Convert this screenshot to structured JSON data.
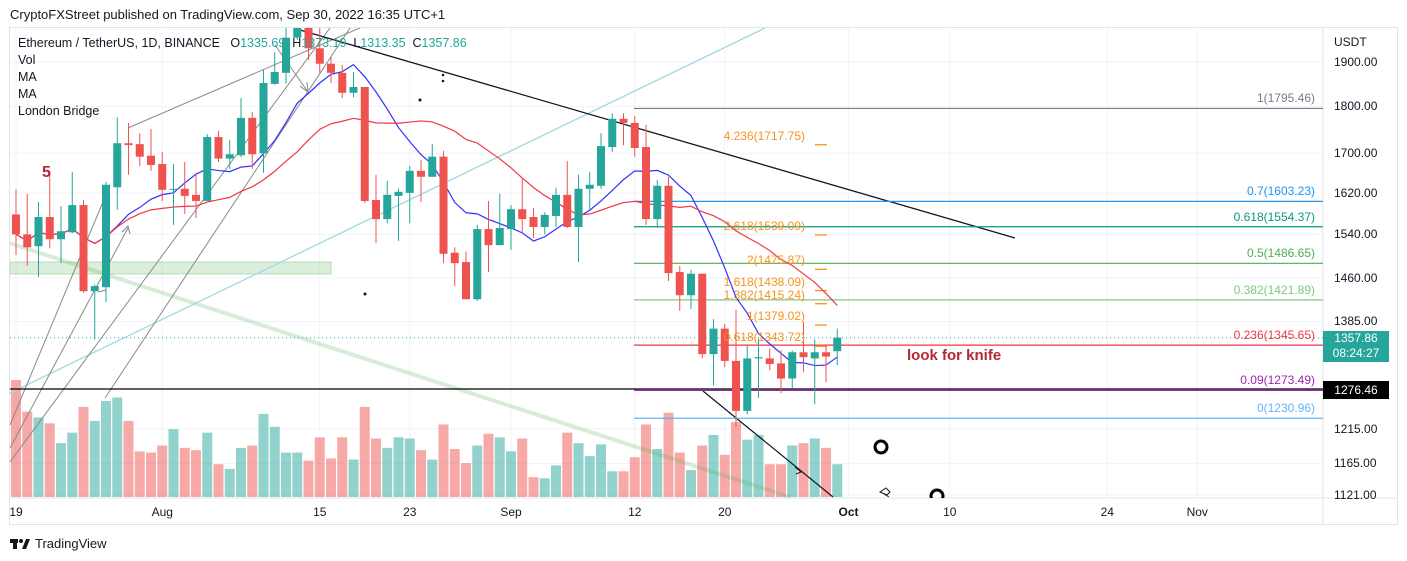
{
  "published": "CryptoFXStreet published on TradingView.com, Sep 30, 2022 16:35 UTC+1",
  "legend": {
    "symbol": "Ethereum / TetherUS, 1D, BINANCE",
    "o_label": "O",
    "o": "1335.69",
    "h_label": "H",
    "h": "1373.19",
    "l_label": "L",
    "l": "1313.35",
    "c_label": "C",
    "c": "1357.86",
    "indicators": [
      "Vol",
      "MA",
      "MA",
      "London Bridge"
    ]
  },
  "colors": {
    "up": "#26a69a",
    "down": "#ef5350",
    "ma_fast": "#3030ff",
    "ma_slow": "#f23645",
    "extension": "#f7931a",
    "note": "#b22833"
  },
  "current_price": {
    "price": "1357.86",
    "countdown": "08:24:27"
  },
  "horizontal_line": {
    "price": "1276.46"
  },
  "notes": {
    "wave_label": "5",
    "text": "look for knife"
  },
  "footer": {
    "brand": "TradingView"
  },
  "chart_data": {
    "type": "candlestick",
    "currency": "USDT",
    "y_scale": "log",
    "ylim": [
      1121,
      1990
    ],
    "grid": true,
    "y_ticks": [
      "1900.00",
      "1800.00",
      "1700.00",
      "1620.00",
      "1540.00",
      "1460.00",
      "1385.00",
      "1215.00",
      "1165.00",
      "1121.00"
    ],
    "x_ticks": [
      {
        "label": "19",
        "date": "2022-07-19"
      },
      {
        "label": "Aug",
        "date": "2022-08-01"
      },
      {
        "label": "15",
        "date": "2022-08-15"
      },
      {
        "label": "23",
        "date": "2022-08-23"
      },
      {
        "label": "Sep",
        "date": "2022-09-01"
      },
      {
        "label": "12",
        "date": "2022-09-12"
      },
      {
        "label": "20",
        "date": "2022-09-20"
      },
      {
        "label": "Oct",
        "date": "2022-10-01",
        "bold": true
      },
      {
        "label": "10",
        "date": "2022-10-10"
      },
      {
        "label": "24",
        "date": "2022-10-24"
      },
      {
        "label": "Nov",
        "date": "2022-11-01"
      }
    ],
    "dates": [
      "2022-07-19",
      "2022-07-20",
      "2022-07-21",
      "2022-07-22",
      "2022-07-23",
      "2022-07-24",
      "2022-07-25",
      "2022-07-26",
      "2022-07-27",
      "2022-07-28",
      "2022-07-29",
      "2022-07-30",
      "2022-07-31",
      "2022-08-01",
      "2022-08-02",
      "2022-08-03",
      "2022-08-04",
      "2022-08-05",
      "2022-08-06",
      "2022-08-07",
      "2022-08-08",
      "2022-08-09",
      "2022-08-10",
      "2022-08-11",
      "2022-08-12",
      "2022-08-13",
      "2022-08-14",
      "2022-08-15",
      "2022-08-16",
      "2022-08-17",
      "2022-08-18",
      "2022-08-19",
      "2022-08-20",
      "2022-08-21",
      "2022-08-22",
      "2022-08-23",
      "2022-08-24",
      "2022-08-25",
      "2022-08-26",
      "2022-08-27",
      "2022-08-28",
      "2022-08-29",
      "2022-08-30",
      "2022-08-31",
      "2022-09-01",
      "2022-09-02",
      "2022-09-03",
      "2022-09-04",
      "2022-09-05",
      "2022-09-06",
      "2022-09-07",
      "2022-09-08",
      "2022-09-09",
      "2022-09-10",
      "2022-09-11",
      "2022-09-12",
      "2022-09-13",
      "2022-09-14",
      "2022-09-15",
      "2022-09-16",
      "2022-09-17",
      "2022-09-18",
      "2022-09-19",
      "2022-09-20",
      "2022-09-21",
      "2022-09-22",
      "2022-09-23",
      "2022-09-24",
      "2022-09-25",
      "2022-09-26",
      "2022-09-27",
      "2022-09-28",
      "2022-09-29",
      "2022-09-30"
    ],
    "open": [
      1578,
      1540,
      1518,
      1573,
      1531,
      1544,
      1596,
      1437,
      1444,
      1631,
      1721,
      1719,
      1695,
      1678,
      1626,
      1628,
      1616,
      1604,
      1734,
      1689,
      1696,
      1775,
      1700,
      1850,
      1875,
      1957,
      1983,
      1932,
      1896,
      1875,
      1830,
      1843,
      1606,
      1569,
      1614,
      1620,
      1664,
      1652,
      1693,
      1506,
      1489,
      1423,
      1550,
      1520,
      1550,
      1588,
      1573,
      1554,
      1575,
      1616,
      1554,
      1628,
      1634,
      1713,
      1773,
      1764,
      1713,
      1569,
      1634,
      1471,
      1430,
      1468,
      1331,
      1373,
      1320,
      1242,
      1324,
      1324,
      1316,
      1292,
      1334,
      1324,
      1334,
      1335.69
    ],
    "high": [
      1627,
      1618,
      1602,
      1658,
      1594,
      1662,
      1606,
      1449,
      1642,
      1776,
      1764,
      1742,
      1751,
      1703,
      1678,
      1682,
      1660,
      1740,
      1747,
      1728,
      1818,
      1788,
      1882,
      1923,
      1983,
      2000,
      2000,
      2000,
      1912,
      1893,
      1877,
      1843,
      1656,
      1644,
      1628,
      1674,
      1686,
      1719,
      1705,
      1516,
      1508,
      1558,
      1604,
      1618,
      1596,
      1648,
      1590,
      1582,
      1630,
      1684,
      1656,
      1662,
      1742,
      1785,
      1785,
      1779,
      1760,
      1646,
      1652,
      1482,
      1475,
      1468,
      1389,
      1381,
      1405,
      1345,
      1356,
      1340,
      1337,
      1337,
      1384,
      1355,
      1345,
      1373.19
    ],
    "low": [
      1502,
      1482,
      1462,
      1514,
      1487,
      1542,
      1434,
      1355,
      1418,
      1587,
      1656,
      1674,
      1664,
      1604,
      1558,
      1579,
      1571,
      1604,
      1682,
      1668,
      1692,
      1668,
      1660,
      1848,
      1850,
      1952,
      1905,
      1875,
      1852,
      1818,
      1820,
      1600,
      1524,
      1561,
      1528,
      1561,
      1602,
      1652,
      1487,
      1446,
      1423,
      1420,
      1471,
      1520,
      1511,
      1544,
      1533,
      1540,
      1554,
      1552,
      1489,
      1587,
      1628,
      1703,
      1717,
      1693,
      1558,
      1552,
      1455,
      1403,
      1406,
      1324,
      1281,
      1310,
      1218,
      1237,
      1262,
      1305,
      1269,
      1276,
      1302,
      1252,
      1286,
      1313.35
    ],
    "close": [
      1540,
      1516,
      1573,
      1531,
      1546,
      1596,
      1437,
      1446,
      1636,
      1721,
      1717,
      1693,
      1676,
      1626,
      1628,
      1614,
      1604,
      1734,
      1689,
      1698,
      1775,
      1698,
      1852,
      1877,
      1957,
      1983,
      1932,
      1896,
      1875,
      1830,
      1843,
      1604,
      1569,
      1616,
      1622,
      1664,
      1652,
      1693,
      1504,
      1487,
      1423,
      1550,
      1520,
      1552,
      1588,
      1569,
      1554,
      1577,
      1616,
      1554,
      1628,
      1636,
      1715,
      1773,
      1764,
      1711,
      1569,
      1634,
      1469,
      1430,
      1468,
      1331,
      1373,
      1320,
      1242,
      1324,
      1326,
      1315,
      1292,
      1334,
      1326,
      1334,
      1327,
      1357.86
    ],
    "volume_relative_pct": [
      100,
      73,
      68,
      63,
      46,
      55,
      77,
      65,
      82,
      85,
      65,
      39,
      38,
      44,
      58,
      42,
      40,
      55,
      28,
      24,
      42,
      44,
      71,
      60,
      38,
      38,
      31,
      51,
      33,
      51,
      32,
      77,
      50,
      42,
      51,
      50,
      40,
      32,
      62,
      41,
      29,
      44,
      54,
      51,
      39,
      50,
      17,
      16,
      27,
      55,
      46,
      35,
      45,
      22,
      22,
      34,
      62,
      41,
      72,
      38,
      23,
      44,
      53,
      36,
      64,
      49,
      53,
      28,
      28,
      44,
      46,
      50,
      42,
      28
    ],
    "fib_retracement": [
      {
        "label": "1(1795.46)",
        "price": 1795.46,
        "color": "#787b86"
      },
      {
        "label": "0.7(1603.23)",
        "price": 1603.23,
        "color": "#2196f3"
      },
      {
        "label": "0.618(1554.37)",
        "price": 1554.37,
        "color": "#089981"
      },
      {
        "label": "0.5(1486.65)",
        "price": 1486.65,
        "color": "#4caf50"
      },
      {
        "label": "0.382(1421.89)",
        "price": 1421.89,
        "color": "#81c784"
      },
      {
        "label": "0.236(1345.65)",
        "price": 1345.65,
        "color": "#f23645"
      },
      {
        "label": "0.09(1273.49)",
        "price": 1273.49,
        "color": "#9c27b0"
      },
      {
        "label": "0(1230.96)",
        "price": 1230.96,
        "color": "#64b5f6"
      }
    ],
    "fib_extension": [
      {
        "label": "4.236(1717.75)",
        "price": 1717.75
      },
      {
        "label": "2.618(1539.09)",
        "price": 1539.09
      },
      {
        "label": "2(1475.87)",
        "price": 1475.87
      },
      {
        "label": "1.618(1438.09)",
        "price": 1438.09
      },
      {
        "label": "1.382(1415.24)",
        "price": 1415.24
      },
      {
        "label": "1(1379.02)",
        "price": 1379.02
      },
      {
        "label": "0.618(1343.72)",
        "price": 1343.72
      }
    ]
  }
}
